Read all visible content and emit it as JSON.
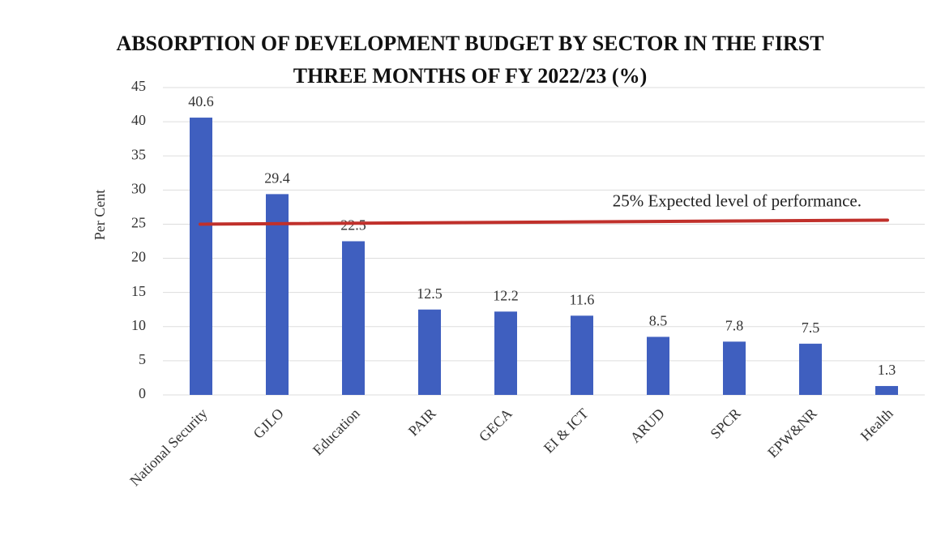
{
  "chart_data": {
    "type": "bar",
    "title": "ABSORPTION OF DEVELOPMENT BUDGET BY SECTOR IN THE FIRST THREE MONTHS OF FY 2022/23 (%)",
    "y_label": "Per Cent",
    "categories": [
      "National Security",
      "GJLO",
      "Education",
      "PAIR",
      "GECA",
      "EI & ICT",
      "ARUD",
      "SPCR",
      "EPW&NR",
      "Health"
    ],
    "values": [
      40.6,
      29.4,
      22.5,
      12.5,
      12.2,
      11.6,
      8.5,
      7.8,
      7.5,
      1.3
    ],
    "color": "#3f5fbf",
    "ylim": [
      0,
      45
    ],
    "yticks": [
      0,
      5,
      10,
      15,
      20,
      25,
      30,
      35,
      40,
      45
    ],
    "grid": true,
    "reference_line": {
      "value": 25,
      "label": "25% Expected level of performance.",
      "color": "#c0302b"
    }
  }
}
